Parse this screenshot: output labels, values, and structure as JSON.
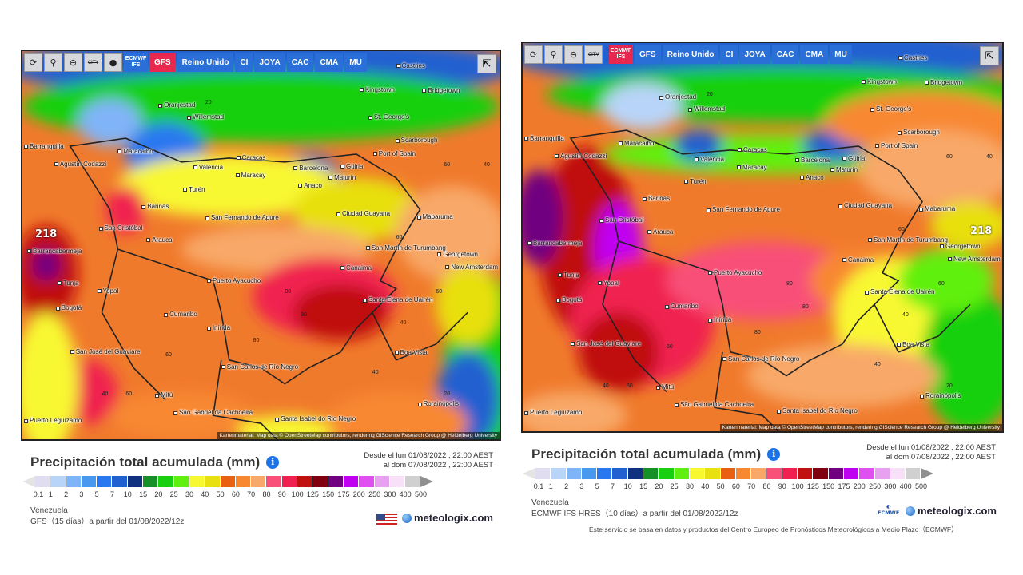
{
  "toolbar": {
    "icons": [
      "refresh-icon",
      "location-pin-icon",
      "zoom-out-icon",
      "city-toggle-icon",
      "marker-icon"
    ],
    "city_label": "CITY",
    "models": [
      "ECMWF IFS",
      "GFS",
      "Reino Unido",
      "CI",
      "JOYA",
      "CAC",
      "CMA",
      "MU"
    ]
  },
  "left": {
    "active_model": "GFS",
    "max_label": "218",
    "title": "Precipitación total acumulada (mm)",
    "date_from": "Desde el lun 01/08/2022 , 22:00 AEST",
    "date_to": "al dom 07/08/2022 , 22:00 AEST",
    "region": "Venezuela",
    "run": "GFS（15 días）a partir del 01/08/2022/12z",
    "brand": "meteologix.com",
    "attribution": "Kartenmaterial: Map data © OpenStreetMap contributors, rendering GIScience Research Group @ Heidelberg University"
  },
  "right": {
    "active_model": "ECMWF IFS",
    "max_label": "218",
    "title": "Precipitación total acumulada (mm)",
    "date_from": "Desde el lun 01/08/2022 , 22:00 AEST",
    "date_to": "al dom 07/08/2022 , 22:00 AEST",
    "region": "Venezuela",
    "run": "ECMWF IFS HRES（10 días）a partir del 01/08/2022/12z",
    "brand": "meteologix.com",
    "ecmwf_logo": "ECMWF",
    "disclaimer": "Este servicio se basa en datos y productos del Centro Europeo de Pronósticos Meteorológicos a Medio Plazo（ECMWF）",
    "attribution": "Kartenmaterial: Map data © OpenStreetMap contributors, rendering GIScience Research Group @ Heidelberg University"
  },
  "cities": [
    "Castries",
    "Kingstown",
    "Bridgetown",
    "Oranjestad",
    "Willemstad",
    "St. George's",
    "Scarborough",
    "Barranquilla",
    "Maracaibo",
    "Agustín Codazzi",
    "Caracas",
    "Port of Spain",
    "Valencia",
    "Maracay",
    "Barcelona",
    "Güiria",
    "Maturín",
    "Anaco",
    "Turén",
    "Barinas",
    "Ciudad Guayana",
    "Mabaruma",
    "San Cristóbal",
    "San Fernando de Apure",
    "Arauca",
    "Barrancabermeja",
    "San Martín de Turumbang",
    "Georgetown",
    "New Amsterdam",
    "Canaima",
    "Tunja",
    "Yopal",
    "Puerto Ayacucho",
    "Bogotá",
    "Santa Elena de Uairén",
    "Cumaribo",
    "Inírida",
    "San José del Guaviare",
    "Boa Vista",
    "San Carlos de Río Negro",
    "Mitú",
    "Rorainópolis",
    "São Gabriel da Cachoeira",
    "Santa Isabel do Rio Negro",
    "Puerto Leguízamo"
  ],
  "legend": {
    "labels": [
      "0.1",
      "1",
      "2",
      "3",
      "5",
      "7",
      "10",
      "15",
      "20",
      "25",
      "30",
      "40",
      "50",
      "60",
      "70",
      "80",
      "90",
      "100",
      "125",
      "150",
      "175",
      "200",
      "250",
      "300",
      "400",
      "500"
    ],
    "colors": [
      "#e0ddf0",
      "#b8d4f8",
      "#80b4f8",
      "#4898f0",
      "#2a78f0",
      "#2060d0",
      "#103080",
      "#189028",
      "#18d010",
      "#60f010",
      "#f8f830",
      "#e8e010",
      "#e86010",
      "#f88830",
      "#f8a868",
      "#f85078",
      "#f02050",
      "#c01010",
      "#800010",
      "#700080",
      "#c000f0",
      "#e050f0",
      "#e8a0f0",
      "#f8e0f8",
      "#d0d0d0"
    ]
  }
}
